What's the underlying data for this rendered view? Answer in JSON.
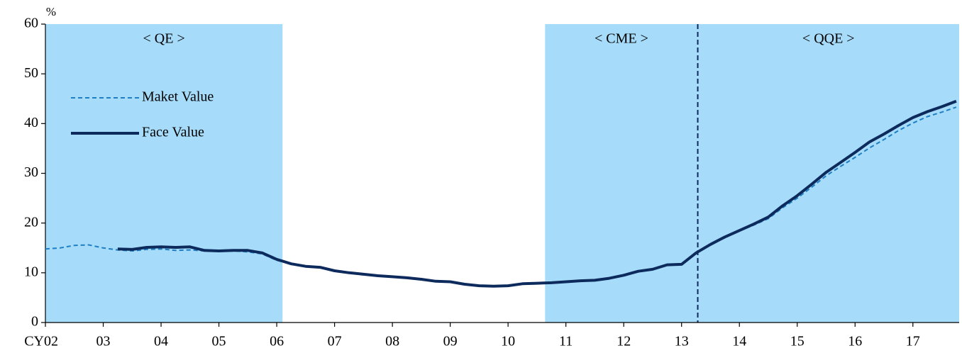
{
  "chart_data": {
    "type": "line",
    "y_unit": "%",
    "x": [
      2002,
      2002.25,
      2002.5,
      2002.75,
      2003,
      2003.25,
      2003.5,
      2003.75,
      2004,
      2004.25,
      2004.5,
      2004.75,
      2005,
      2005.25,
      2005.5,
      2005.75,
      2006,
      2006.25,
      2006.5,
      2006.75,
      2007,
      2007.25,
      2007.5,
      2007.75,
      2008,
      2008.25,
      2008.5,
      2008.75,
      2009,
      2009.25,
      2009.5,
      2009.75,
      2010,
      2010.25,
      2010.5,
      2010.75,
      2011,
      2011.25,
      2011.5,
      2011.75,
      2012,
      2012.25,
      2012.5,
      2012.75,
      2013,
      2013.25,
      2013.5,
      2013.75,
      2014,
      2014.25,
      2014.5,
      2014.75,
      2015,
      2015.25,
      2015.5,
      2015.75,
      2016,
      2016.25,
      2016.5,
      2016.75,
      2017,
      2017.25,
      2017.5,
      2017.75
    ],
    "series": [
      {
        "name": "Maket Value",
        "color": "#1f7fc4",
        "dashed": true,
        "values": [
          14.8,
          15.0,
          15.5,
          15.6,
          15.0,
          14.6,
          14.4,
          14.7,
          14.8,
          14.5,
          14.6,
          14.4,
          14.3,
          14.4,
          14.2,
          13.8,
          12.5,
          11.8,
          11.3,
          11.1,
          10.4,
          10.0,
          9.7,
          9.4,
          9.2,
          9.0,
          8.7,
          8.3,
          8.2,
          7.7,
          7.4,
          7.3,
          7.4,
          7.8,
          7.9,
          8.0,
          8.2,
          8.4,
          8.5,
          8.9,
          9.5,
          10.3,
          10.7,
          11.6,
          11.7,
          14.0,
          15.6,
          17.1,
          18.4,
          19.6,
          20.9,
          23.1,
          25.0,
          27.2,
          29.5,
          31.4,
          33.2,
          35.1,
          36.8,
          38.6,
          40.1,
          41.4,
          42.3,
          43.3
        ]
      },
      {
        "name": "Face Value",
        "color": "#0d2a5c",
        "dashed": false,
        "values": [
          null,
          null,
          null,
          null,
          null,
          14.8,
          14.7,
          15.1,
          15.2,
          15.1,
          15.2,
          14.5,
          14.4,
          14.5,
          14.5,
          14.0,
          12.7,
          11.8,
          11.3,
          11.1,
          10.4,
          10.0,
          9.7,
          9.4,
          9.2,
          9.0,
          8.7,
          8.3,
          8.2,
          7.7,
          7.4,
          7.3,
          7.4,
          7.8,
          7.9,
          8.0,
          8.2,
          8.4,
          8.5,
          8.9,
          9.5,
          10.3,
          10.7,
          11.6,
          11.7,
          14.0,
          15.7,
          17.2,
          18.5,
          19.8,
          21.2,
          23.5,
          25.5,
          27.8,
          30.2,
          32.2,
          34.2,
          36.3,
          37.9,
          39.6,
          41.2,
          42.4,
          43.4,
          44.5
        ]
      }
    ],
    "regions": [
      {
        "start": 2002,
        "end": 2006.1,
        "label": "< QE >"
      },
      {
        "start": 2010.64,
        "end": 2013.28,
        "label": "< CME >"
      },
      {
        "start": 2013.28,
        "end": 2017.8,
        "label": "< QQE >"
      }
    ],
    "region_color": "#a6dcfa",
    "vline": 2013.28,
    "xlim": [
      2002,
      2017.8
    ],
    "xticks": [
      {
        "value": 2002,
        "label": "CY02"
      },
      {
        "value": 2003,
        "label": "03"
      },
      {
        "value": 2004,
        "label": "04"
      },
      {
        "value": 2005,
        "label": "05"
      },
      {
        "value": 2006,
        "label": "06"
      },
      {
        "value": 2007,
        "label": "07"
      },
      {
        "value": 2008,
        "label": "08"
      },
      {
        "value": 2009,
        "label": "09"
      },
      {
        "value": 2010,
        "label": "10"
      },
      {
        "value": 2011,
        "label": "11"
      },
      {
        "value": 2012,
        "label": "12"
      },
      {
        "value": 2013,
        "label": "13"
      },
      {
        "value": 2014,
        "label": "14"
      },
      {
        "value": 2015,
        "label": "15"
      },
      {
        "value": 2016,
        "label": "16"
      },
      {
        "value": 2017,
        "label": "17"
      }
    ],
    "ylim": [
      0,
      60
    ],
    "yticks": [
      0,
      10,
      20,
      30,
      40,
      50,
      60
    ],
    "grid": false,
    "legend": "upper-left"
  }
}
